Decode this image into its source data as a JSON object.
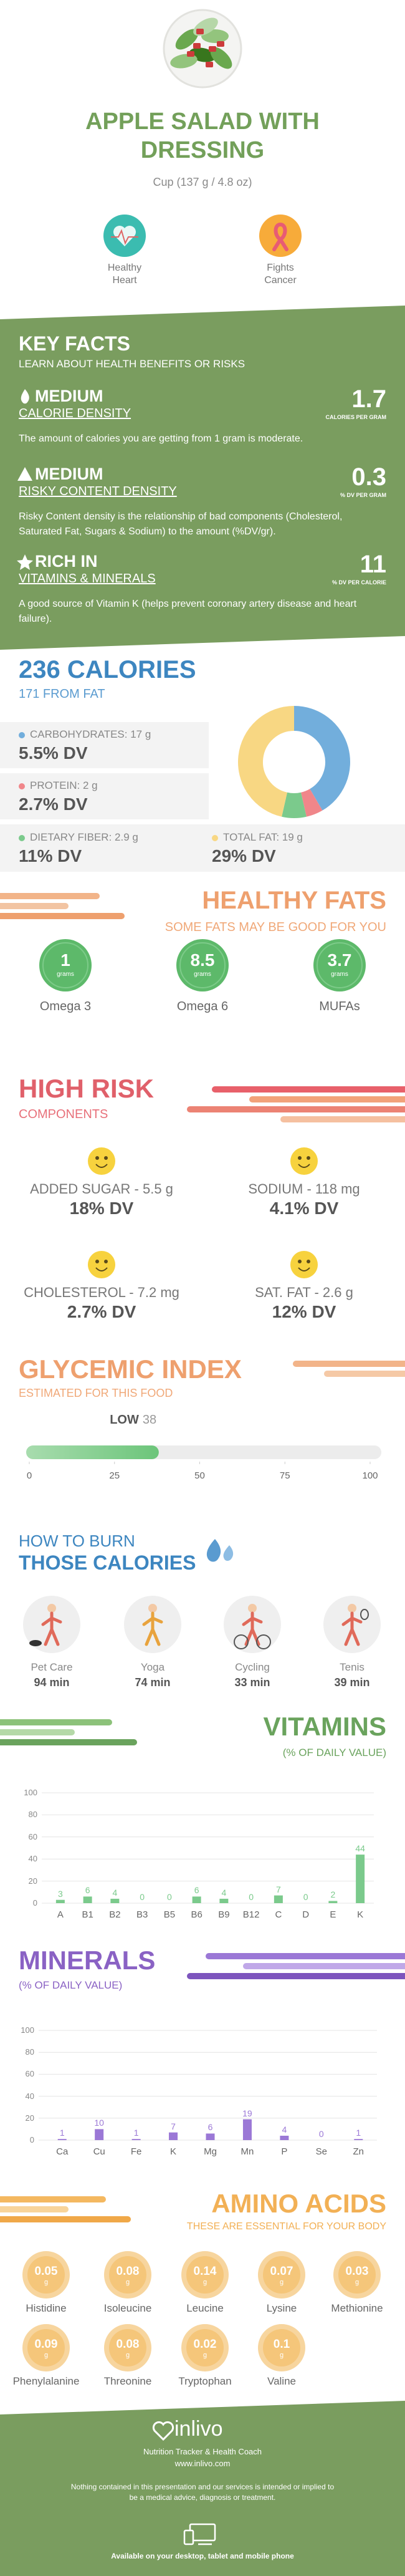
{
  "header": {
    "title": "APPLE SALAD WITH DRESSING",
    "serving": "Cup (137 g / 4.8 oz)",
    "benefits": [
      "Healthy Heart",
      "Fights Cancer"
    ]
  },
  "key_facts": {
    "title": "KEY FACTS",
    "subtitle": "LEARN ABOUT HEALTH BENEFITS OR RISKS",
    "items": [
      {
        "level": "MEDIUM",
        "name": "CALORIE DENSITY",
        "value": 1.7,
        "unit": "CALORIES PER GRAM",
        "description": "The amount of calories you are getting from 1 gram is moderate."
      },
      {
        "level": "MEDIUM",
        "name": "RISKY CONTENT DENSITY",
        "value": 0.3,
        "unit": "% DV PER GRAM",
        "description": "Risky Content density is the relationship of bad components (Cholesterol, Saturated Fat, Sugars & Sodium) to the amount (%DV/gr)."
      },
      {
        "level": "RICH IN",
        "name": "VITAMINS & MINERALS",
        "value": 11,
        "unit": "% DV PER CALORIE",
        "description": "A good source of Vitamin K (helps prevent coronary artery disease and heart failure)."
      }
    ]
  },
  "calories": {
    "title": "236 CALORIES",
    "subtitle": "171 FROM FAT",
    "nutrients": [
      {
        "label": "CARBOHYDRATES: 17 g",
        "dv": "5.5% DV",
        "grams": 17,
        "color": "#72aedc"
      },
      {
        "label": "PROTEIN: 2 g",
        "dv": "2.7% DV",
        "grams": 2,
        "color": "#f0868a"
      },
      {
        "label": "DIETARY FIBER: 2.9 g",
        "dv": "11% DV",
        "grams": 2.9,
        "color": "#7bca8c"
      },
      {
        "label": "TOTAL FAT: 19 g",
        "dv": "29% DV",
        "grams": 19,
        "color": "#f8d783"
      }
    ]
  },
  "healthy_fats": {
    "title": "HEALTHY FATS",
    "subtitle": "SOME FATS MAY BE GOOD FOR YOU",
    "unit": "grams",
    "items": [
      {
        "value": 1,
        "name": "Omega 3"
      },
      {
        "value": 8.5,
        "name": "Omega 6"
      },
      {
        "value": 3.7,
        "name": "MUFAs"
      }
    ]
  },
  "high_risk": {
    "title": "HIGH RISK",
    "subtitle": "COMPONENTS",
    "items": [
      {
        "label": "ADDED SUGAR - 5.5 g",
        "dv": "18% DV"
      },
      {
        "label": "SODIUM - 118 mg",
        "dv": "4.1% DV"
      },
      {
        "label": "CHOLESTEROL - 7.2 mg",
        "dv": "2.7% DV"
      },
      {
        "label": "SAT. FAT - 2.6 g",
        "dv": "12% DV"
      }
    ]
  },
  "glycemic_index": {
    "title": "GLYCEMIC INDEX",
    "subtitle": "ESTIMATED FOR THIS FOOD",
    "level": "LOW",
    "value": 38,
    "xlim": [
      0,
      100
    ],
    "xticks": [
      0,
      25,
      50,
      75,
      100
    ],
    "color": "#6cc57a"
  },
  "burn": {
    "title": "HOW TO BURN",
    "subtitle": "THOSE CALORIES",
    "activities": [
      {
        "name": "Pet Care",
        "time": "94 min"
      },
      {
        "name": "Yoga",
        "time": "74 min"
      },
      {
        "name": "Cycling",
        "time": "33 min"
      },
      {
        "name": "Tenis",
        "time": "39 min"
      }
    ]
  },
  "chart_data": [
    {
      "type": "bar",
      "title": "VITAMINS",
      "subtitle": "(% OF DAILY VALUE)",
      "categories": [
        "A",
        "B1",
        "B2",
        "B3",
        "B5",
        "B6",
        "B9",
        "B12",
        "C",
        "D",
        "E",
        "K"
      ],
      "values": [
        3,
        6,
        4,
        0,
        0,
        6,
        4,
        0,
        7,
        0,
        2,
        44
      ],
      "color": "#7bca8c",
      "ylim": [
        0,
        100
      ],
      "yticks": [
        0,
        20,
        40,
        60,
        80,
        100
      ],
      "grid": true
    },
    {
      "type": "bar",
      "title": "MINERALS",
      "subtitle": "(% OF DAILY VALUE)",
      "categories": [
        "Ca",
        "Cu",
        "Fe",
        "K",
        "Mg",
        "Mn",
        "P",
        "Se",
        "Zn"
      ],
      "values": [
        1,
        10,
        1,
        7,
        6,
        19,
        4,
        0,
        1
      ],
      "color": "#9b78d6",
      "ylim": [
        0,
        100
      ],
      "yticks": [
        0,
        20,
        40,
        60,
        80,
        100
      ],
      "grid": true
    }
  ],
  "amino_acids": {
    "title": "AMINO ACIDS",
    "subtitle": "THESE ARE ESSENTIAL FOR YOUR BODY",
    "unit": "g",
    "items": [
      {
        "name": "Histidine",
        "value": 0.05
      },
      {
        "name": "Isoleucine",
        "value": 0.08
      },
      {
        "name": "Leucine",
        "value": 0.14
      },
      {
        "name": "Lysine",
        "value": 0.07
      },
      {
        "name": "Methionine",
        "value": 0.03
      },
      {
        "name": "Phenylalanine",
        "value": 0.09
      },
      {
        "name": "Threonine",
        "value": 0.08
      },
      {
        "name": "Tryptophan",
        "value": 0.02
      },
      {
        "name": "Valine",
        "value": 0.1
      }
    ]
  },
  "footer": {
    "brand": "inlivo",
    "tagline": "Nutrition Tracker & Health Coach",
    "url": "www.inlivo.com",
    "disclaimer": "Nothing contained in this presentation and our services is intended or implied to be a medical advice, diagnosis or treatment.",
    "availability": "Available on your desktop, tablet and mobile phone"
  }
}
